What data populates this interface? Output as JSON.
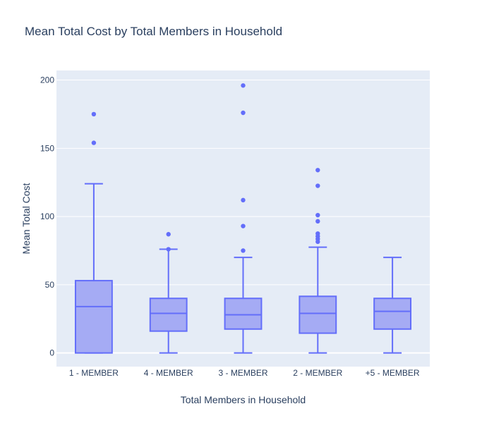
{
  "chart_data": {
    "type": "box",
    "title": "Mean Total Cost by Total Members in Household",
    "xlabel": "Total Members in Household",
    "ylabel": "Mean Total Cost",
    "ylim": [
      -10,
      207
    ],
    "yticks": [
      0,
      50,
      100,
      150,
      200
    ],
    "grid": true,
    "colors": {
      "box_fill": "#a5abf4",
      "line": "#636efa",
      "plot_bg": "#e5ecf6",
      "grid": "#ffffff",
      "text": "#2a3f5f"
    },
    "categories": [
      "1 - MEMBER",
      "4 - MEMBER",
      "3 - MEMBER",
      "2 - MEMBER",
      "+5 - MEMBER"
    ],
    "boxes": [
      {
        "category": "1 - MEMBER",
        "min": 0,
        "q1": 0,
        "median": 34,
        "q3": 53,
        "max": 124,
        "outliers": [
          154,
          175
        ]
      },
      {
        "category": "4 - MEMBER",
        "min": 0,
        "q1": 16,
        "median": 29,
        "q3": 40,
        "max": 76,
        "outliers": [
          76,
          87
        ]
      },
      {
        "category": "3 - MEMBER",
        "min": 0,
        "q1": 17.5,
        "median": 28,
        "q3": 40,
        "max": 70,
        "outliers": [
          75,
          93,
          112,
          176,
          196
        ]
      },
      {
        "category": "2 - MEMBER",
        "min": 0,
        "q1": 14.5,
        "median": 29,
        "q3": 41.5,
        "max": 77.5,
        "outliers": [
          81.5,
          83.5,
          85.5,
          87.5,
          96.5,
          101,
          122.5,
          134
        ]
      },
      {
        "category": "+5 - MEMBER",
        "min": 0,
        "q1": 17.5,
        "median": 30.5,
        "q3": 40,
        "max": 70,
        "outliers": []
      }
    ]
  }
}
